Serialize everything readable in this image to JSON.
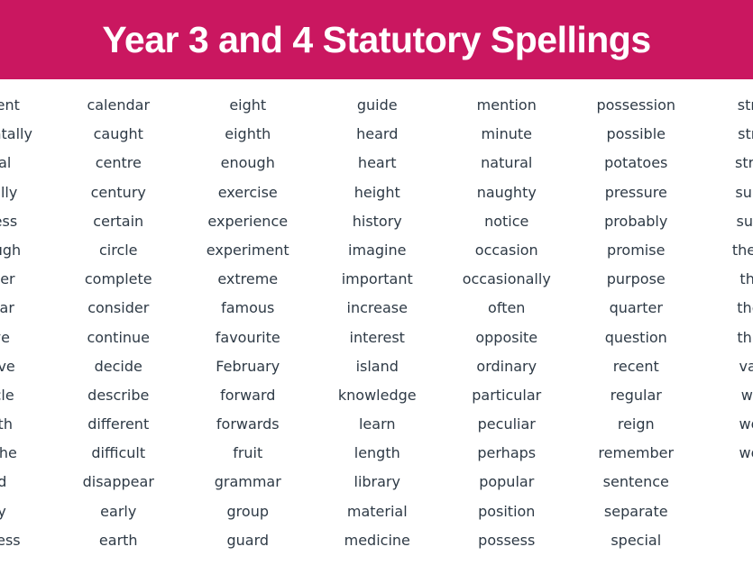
{
  "header": {
    "title": "Year 3 and 4 Statutory Spellings",
    "background_color": "#CA1760",
    "text_color": "#ffffff"
  },
  "word_list": {
    "text_color": "#2E3A46",
    "rows": 16,
    "columns": [
      {
        "clipped_by_viewport": true,
        "clipped_edge": "left",
        "words": [
          "accident",
          "accidentally",
          "actual",
          "actually",
          "address",
          "although",
          "answer",
          "appear",
          "arrive",
          "believe",
          "bicycle",
          "breath",
          "breathe",
          "build",
          "busy",
          "business"
        ]
      },
      {
        "clipped_by_viewport": false,
        "words": [
          "calendar",
          "caught",
          "centre",
          "century",
          "certain",
          "circle",
          "complete",
          "consider",
          "continue",
          "decide",
          "describe",
          "different",
          "difficult",
          "disappear",
          "early",
          "earth"
        ]
      },
      {
        "clipped_by_viewport": false,
        "words": [
          "eight",
          "eighth",
          "enough",
          "exercise",
          "experience",
          "experiment",
          "extreme",
          "famous",
          "favourite",
          "February",
          "forward",
          "forwards",
          "fruit",
          "grammar",
          "group",
          "guard"
        ]
      },
      {
        "clipped_by_viewport": false,
        "words": [
          "guide",
          "heard",
          "heart",
          "height",
          "history",
          "imagine",
          "important",
          "increase",
          "interest",
          "island",
          "knowledge",
          "learn",
          "length",
          "library",
          "material",
          "medicine"
        ]
      },
      {
        "clipped_by_viewport": false,
        "words": [
          "mention",
          "minute",
          "natural",
          "naughty",
          "notice",
          "occasion",
          "occasionally",
          "often",
          "opposite",
          "ordinary",
          "particular",
          "peculiar",
          "perhaps",
          "popular",
          "position",
          "possess"
        ]
      },
      {
        "clipped_by_viewport": false,
        "words": [
          "possession",
          "possible",
          "potatoes",
          "pressure",
          "probably",
          "promise",
          "purpose",
          "quarter",
          "question",
          "recent",
          "regular",
          "reign",
          "remember",
          "sentence",
          "separate",
          "special"
        ]
      },
      {
        "clipped_by_viewport": true,
        "clipped_edge": "right",
        "words": [
          "straight",
          "strange",
          "strength",
          "suppose",
          "surprise",
          "therefore",
          "though",
          "thought",
          "through",
          "various",
          "weight",
          "woman",
          "women"
        ]
      }
    ]
  }
}
